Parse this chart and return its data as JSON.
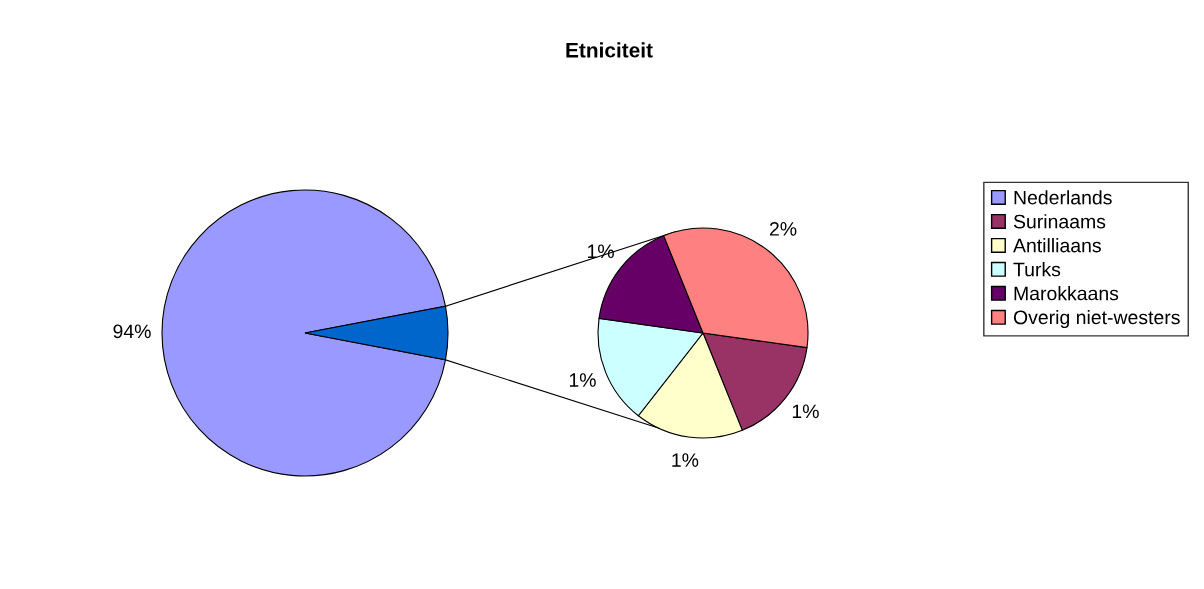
{
  "chart_data": [
    {
      "type": "pie",
      "title": "Etniciteit",
      "categories": [
        "Nederlands",
        null
      ],
      "values": [
        94,
        6
      ],
      "value_labels": [
        "94%",
        null
      ],
      "colors": [
        "#9999ff",
        "#0066cc"
      ]
    },
    {
      "type": "pie",
      "categories": [
        "Surinaams",
        "Antilliaans",
        "Turks",
        "Marokkaans",
        "Overig niet-westers"
      ],
      "values": [
        1,
        1,
        1,
        1,
        2
      ],
      "value_labels": [
        "1%",
        "1%",
        "1%",
        "1%",
        "2%"
      ],
      "colors": [
        "#993366",
        "#ffffcc",
        "#ccffff",
        "#660066",
        "#ff8080"
      ],
      "legend": "right"
    }
  ]
}
